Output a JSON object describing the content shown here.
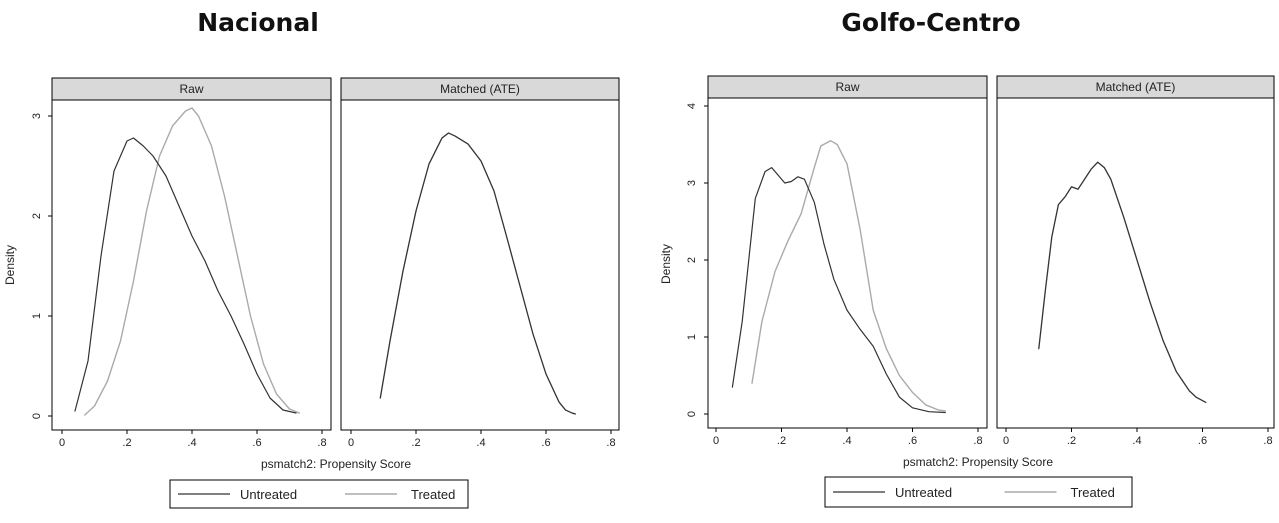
{
  "chart_data": [
    {
      "type": "line",
      "title": "Nacional",
      "panels": [
        "Raw",
        "Matched (ATE)"
      ],
      "xlabel": "psmatch2: Propensity Score",
      "ylabel": "Density",
      "xlim": [
        0,
        0.8
      ],
      "ylim": [
        0,
        3.2
      ],
      "xticks": [
        0,
        0.2,
        0.4,
        0.6,
        0.8
      ],
      "xtick_labels": [
        "0",
        ".2",
        ".4",
        ".6",
        ".8"
      ],
      "yticks": [
        0,
        1,
        2,
        3
      ],
      "ytick_labels": [
        "0",
        "1",
        "2",
        "3"
      ],
      "legend": [
        "Untreated",
        "Treated"
      ],
      "series": [
        {
          "name": "Untreated",
          "panel": "Raw",
          "x": [
            0.04,
            0.08,
            0.12,
            0.16,
            0.2,
            0.22,
            0.25,
            0.28,
            0.32,
            0.36,
            0.4,
            0.44,
            0.48,
            0.52,
            0.56,
            0.6,
            0.64,
            0.68,
            0.72
          ],
          "y": [
            0.05,
            0.55,
            1.6,
            2.45,
            2.75,
            2.78,
            2.7,
            2.6,
            2.4,
            2.1,
            1.8,
            1.55,
            1.25,
            1.0,
            0.72,
            0.42,
            0.18,
            0.06,
            0.03
          ]
        },
        {
          "name": "Treated",
          "panel": "Raw",
          "x": [
            0.07,
            0.1,
            0.14,
            0.18,
            0.22,
            0.26,
            0.3,
            0.34,
            0.38,
            0.4,
            0.42,
            0.46,
            0.5,
            0.54,
            0.58,
            0.62,
            0.66,
            0.7,
            0.73
          ],
          "y": [
            0.01,
            0.1,
            0.35,
            0.75,
            1.35,
            2.05,
            2.6,
            2.9,
            3.05,
            3.08,
            3.0,
            2.7,
            2.2,
            1.6,
            1.0,
            0.52,
            0.22,
            0.07,
            0.03
          ]
        },
        {
          "name": "Untreated",
          "panel": "Matched (ATE)",
          "x": [
            0.09,
            0.12,
            0.16,
            0.2,
            0.24,
            0.28,
            0.3,
            0.32,
            0.36,
            0.4,
            0.44,
            0.48,
            0.52,
            0.56,
            0.6,
            0.64,
            0.66,
            0.68,
            0.69
          ],
          "y": [
            0.18,
            0.75,
            1.45,
            2.05,
            2.52,
            2.78,
            2.83,
            2.8,
            2.72,
            2.55,
            2.25,
            1.78,
            1.3,
            0.82,
            0.42,
            0.14,
            0.06,
            0.03,
            0.02
          ]
        },
        {
          "name": "Treated",
          "panel": "Matched (ATE)",
          "x": [
            0.09,
            0.12,
            0.16,
            0.2,
            0.24,
            0.28,
            0.3,
            0.32,
            0.36,
            0.4,
            0.44,
            0.48,
            0.52,
            0.56,
            0.6,
            0.64,
            0.66,
            0.68,
            0.69
          ],
          "y": [
            0.18,
            0.75,
            1.45,
            2.05,
            2.52,
            2.78,
            2.83,
            2.8,
            2.72,
            2.55,
            2.25,
            1.78,
            1.3,
            0.82,
            0.42,
            0.14,
            0.06,
            0.03,
            0.02
          ]
        }
      ]
    },
    {
      "type": "line",
      "title": "Golfo-Centro",
      "panels": [
        "Raw",
        "Matched (ATE)"
      ],
      "xlabel": "psmatch2: Propensity Score",
      "ylabel": "Density",
      "xlim": [
        0,
        0.8
      ],
      "ylim": [
        0,
        4.1
      ],
      "xticks": [
        0,
        0.2,
        0.4,
        0.6,
        0.8
      ],
      "xtick_labels": [
        "0",
        ".2",
        ".4",
        ".6",
        ".8"
      ],
      "yticks": [
        0,
        1,
        2,
        3,
        4
      ],
      "ytick_labels": [
        "0",
        "1",
        "2",
        "3",
        "4"
      ],
      "legend": [
        "Untreated",
        "Treated"
      ],
      "series": [
        {
          "name": "Untreated",
          "panel": "Raw",
          "x": [
            0.05,
            0.08,
            0.12,
            0.15,
            0.17,
            0.19,
            0.21,
            0.23,
            0.25,
            0.27,
            0.3,
            0.33,
            0.36,
            0.4,
            0.44,
            0.48,
            0.52,
            0.56,
            0.6,
            0.65,
            0.7
          ],
          "y": [
            0.35,
            1.2,
            2.8,
            3.15,
            3.2,
            3.1,
            3.0,
            3.02,
            3.08,
            3.05,
            2.75,
            2.2,
            1.75,
            1.35,
            1.1,
            0.88,
            0.52,
            0.22,
            0.08,
            0.03,
            0.02
          ]
        },
        {
          "name": "Treated",
          "panel": "Raw",
          "x": [
            0.11,
            0.14,
            0.18,
            0.22,
            0.26,
            0.3,
            0.32,
            0.35,
            0.37,
            0.4,
            0.44,
            0.48,
            0.52,
            0.56,
            0.6,
            0.64,
            0.68,
            0.7
          ],
          "y": [
            0.4,
            1.2,
            1.85,
            2.25,
            2.6,
            3.2,
            3.48,
            3.55,
            3.5,
            3.25,
            2.4,
            1.35,
            0.85,
            0.5,
            0.28,
            0.12,
            0.05,
            0.04
          ]
        },
        {
          "name": "Untreated",
          "panel": "Matched (ATE)",
          "x": [
            0.1,
            0.12,
            0.14,
            0.16,
            0.18,
            0.2,
            0.22,
            0.24,
            0.26,
            0.28,
            0.3,
            0.32,
            0.36,
            0.4,
            0.44,
            0.48,
            0.52,
            0.56,
            0.58,
            0.61
          ],
          "y": [
            0.85,
            1.6,
            2.3,
            2.72,
            2.82,
            2.95,
            2.92,
            3.05,
            3.18,
            3.27,
            3.2,
            3.05,
            2.55,
            2.0,
            1.45,
            0.95,
            0.55,
            0.3,
            0.22,
            0.15
          ]
        },
        {
          "name": "Treated",
          "panel": "Matched (ATE)",
          "x": [
            0.1,
            0.12,
            0.14,
            0.16,
            0.18,
            0.2,
            0.22,
            0.24,
            0.26,
            0.28,
            0.3,
            0.32,
            0.36,
            0.4,
            0.44,
            0.48,
            0.52,
            0.56,
            0.58,
            0.61
          ],
          "y": [
            0.85,
            1.6,
            2.3,
            2.72,
            2.82,
            2.95,
            2.92,
            3.05,
            3.18,
            3.27,
            3.2,
            3.05,
            2.55,
            2.0,
            1.45,
            0.95,
            0.55,
            0.3,
            0.22,
            0.15
          ]
        }
      ]
    }
  ],
  "colors": {
    "untreated": "#333333",
    "treated": "#aaaaaa",
    "strip_fill": "#d9d9d9",
    "panel_border": "#000000"
  }
}
